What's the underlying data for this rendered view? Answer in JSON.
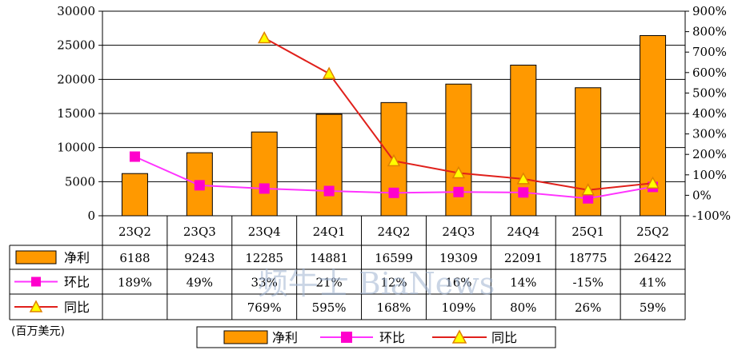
{
  "unit_label": "(百万美元)",
  "watermark": "频牛士 BiaNews",
  "colors": {
    "bar": "#FF9900",
    "bar_stroke": "#000000",
    "qoq": "#FF33FF",
    "qoq_marker": "#FF00CC",
    "yoy": "#E0201B",
    "yoy_marker": "#FFFF00",
    "grid": "#000000"
  },
  "chart_data": {
    "type": "bar",
    "title": "",
    "categories": [
      "23Q2",
      "23Q3",
      "23Q4",
      "24Q1",
      "24Q2",
      "24Q3",
      "24Q4",
      "25Q1",
      "25Q2"
    ],
    "left_axis": {
      "ylim": [
        0,
        30000
      ],
      "ticks": [
        "0",
        "5000",
        "10000",
        "15000",
        "20000",
        "25000",
        "30000"
      ]
    },
    "right_axis": {
      "ylim": [
        -100,
        900
      ],
      "ticks": [
        "-100%",
        "0%",
        "100%",
        "200%",
        "300%",
        "400%",
        "500%",
        "600%",
        "700%",
        "800%",
        "900%"
      ]
    },
    "series": [
      {
        "name": "净利",
        "kind": "bar",
        "axis": "left",
        "values": [
          6188,
          9243,
          12285,
          14881,
          16599,
          19309,
          22091,
          18775,
          26422
        ],
        "labels": [
          "6188",
          "9243",
          "12285",
          "14881",
          "16599",
          "19309",
          "22091",
          "18775",
          "26422"
        ]
      },
      {
        "name": "环比",
        "kind": "line",
        "axis": "right",
        "marker": "square",
        "values": [
          189,
          49,
          33,
          21,
          12,
          16,
          14,
          -15,
          41
        ],
        "labels": [
          "189%",
          "49%",
          "33%",
          "21%",
          "12%",
          "16%",
          "14%",
          "-15%",
          "41%"
        ]
      },
      {
        "name": "同比",
        "kind": "line",
        "axis": "right",
        "marker": "triangle",
        "values": [
          null,
          null,
          769,
          595,
          168,
          109,
          80,
          26,
          59
        ],
        "labels": [
          "",
          "",
          "769%",
          "595%",
          "168%",
          "109%",
          "80%",
          "26%",
          "59%"
        ]
      }
    ],
    "legend": [
      "净利",
      "环比",
      "同比"
    ],
    "legend_position": "bottom",
    "grid": true
  }
}
